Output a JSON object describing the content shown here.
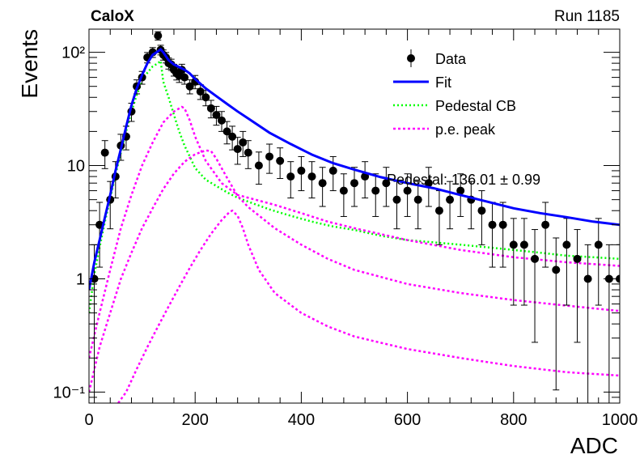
{
  "header": {
    "left_label": "CaloX",
    "right_label": "Run 1185"
  },
  "overlay_text": "Pedestal: 136.01 ± 0.99",
  "colors": {
    "data": "#000000",
    "fit": "#0000ff",
    "pedestal": "#00ff00",
    "pe": "#ff00ff"
  },
  "chart_data": {
    "type": "scatter",
    "xlabel": "ADC",
    "ylabel": "Events",
    "xlim": [
      0,
      1000
    ],
    "ylim": [
      0.08,
      160
    ],
    "yscale": "log",
    "x_ticks": [
      0,
      200,
      400,
      600,
      800,
      1000
    ],
    "y_ticks": [
      {
        "value": 0.1,
        "label": "10⁻¹"
      },
      {
        "value": 1,
        "label": "1"
      },
      {
        "value": 10,
        "label": "10"
      },
      {
        "value": 100,
        "label": "10²"
      }
    ],
    "legend_position": "top-right",
    "legend": [
      {
        "label": "Data",
        "style": "marker"
      },
      {
        "label": "Fit",
        "style": "line"
      },
      {
        "label": "Pedestal CB",
        "style": "dotted-green"
      },
      {
        "label": "p.e. peak",
        "style": "dotted-magenta"
      }
    ],
    "series": [
      {
        "name": "Data",
        "kind": "points",
        "x": [
          10,
          20,
          30,
          40,
          50,
          60,
          70,
          80,
          90,
          100,
          110,
          120,
          130,
          135,
          140,
          145,
          150,
          155,
          160,
          165,
          170,
          175,
          180,
          190,
          200,
          210,
          220,
          230,
          240,
          250,
          260,
          270,
          280,
          290,
          300,
          320,
          340,
          360,
          380,
          400,
          420,
          440,
          460,
          480,
          500,
          520,
          540,
          560,
          580,
          600,
          620,
          640,
          660,
          680,
          700,
          720,
          740,
          760,
          780,
          800,
          820,
          840,
          860,
          880,
          900,
          920,
          940,
          960,
          980,
          1000
        ],
        "y": [
          1.0,
          3.0,
          13,
          5.0,
          8.0,
          15,
          18,
          30,
          50,
          60,
          90,
          100,
          140,
          105,
          95,
          90,
          80,
          78,
          70,
          65,
          62,
          70,
          60,
          50,
          55,
          45,
          40,
          32,
          28,
          25,
          20,
          18,
          14,
          16,
          13,
          10,
          12,
          11,
          8,
          9,
          8,
          7,
          9,
          6,
          7,
          8,
          6,
          7,
          5,
          6,
          5,
          7,
          4,
          5,
          6,
          5,
          4,
          3,
          3,
          2,
          2,
          1.5,
          3,
          1.2,
          2,
          1.5,
          1.0,
          2,
          1.0,
          1.0
        ]
      },
      {
        "name": "Fit",
        "kind": "line",
        "x": [
          0,
          10,
          20,
          30,
          40,
          50,
          60,
          70,
          80,
          90,
          100,
          110,
          120,
          130,
          135,
          140,
          150,
          160,
          170,
          180,
          190,
          200,
          220,
          240,
          260,
          280,
          300,
          340,
          380,
          420,
          460,
          500,
          550,
          600,
          650,
          700,
          750,
          800,
          850,
          900,
          950,
          1000
        ],
        "y": [
          0.8,
          1.4,
          2.2,
          3.5,
          5.5,
          9,
          14,
          22,
          34,
          48,
          63,
          80,
          95,
          102,
          106,
          100,
          85,
          78,
          74,
          70,
          65,
          58,
          48,
          41,
          35,
          30,
          26,
          19.5,
          15.5,
          12.5,
          10.5,
          9.2,
          7.9,
          7.0,
          6.3,
          5.5,
          4.8,
          4.2,
          3.8,
          3.5,
          3.2,
          3.0
        ]
      },
      {
        "name": "Pedestal CB",
        "kind": "line",
        "x": [
          0,
          10,
          20,
          30,
          40,
          50,
          60,
          70,
          80,
          90,
          100,
          110,
          120,
          130,
          135,
          140,
          150,
          160,
          170,
          180,
          190,
          200,
          220,
          240,
          260,
          280,
          300,
          340,
          380,
          420,
          460,
          500,
          550,
          600,
          650,
          700,
          750,
          800,
          850,
          900,
          950,
          1000
        ],
        "y": [
          0.5,
          1.1,
          1.9,
          3.2,
          5.1,
          8.3,
          13,
          20,
          30,
          42,
          55,
          66,
          75,
          80,
          84,
          55,
          40,
          28,
          20,
          15,
          12,
          9.5,
          7.5,
          6.6,
          5.8,
          5.2,
          4.8,
          4.1,
          3.6,
          3.2,
          2.9,
          2.7,
          2.4,
          2.2,
          2.1,
          2.0,
          1.9,
          1.8,
          1.7,
          1.6,
          1.55,
          1.5
        ]
      },
      {
        "name": "p.e. peak",
        "kind": "line",
        "x": [
          0,
          20,
          40,
          60,
          80,
          100,
          120,
          140,
          160,
          175,
          180,
          190,
          200,
          220,
          250,
          280,
          300,
          350,
          400,
          450,
          500,
          600,
          700,
          800,
          900,
          1000
        ],
        "y": [
          0.2,
          0.5,
          1.2,
          2.8,
          5.5,
          10,
          16,
          24,
          30,
          33,
          32,
          25,
          18,
          11,
          7,
          5.5,
          5.2,
          4.5,
          3.8,
          3.2,
          2.8,
          2.2,
          1.8,
          1.55,
          1.4,
          1.3
        ]
      },
      {
        "name": "p.e. peak",
        "kind": "line",
        "x": [
          0,
          20,
          40,
          60,
          80,
          100,
          120,
          140,
          160,
          180,
          200,
          220,
          230,
          240,
          260,
          280,
          300,
          350,
          400,
          450,
          500,
          600,
          700,
          800,
          900,
          1000
        ],
        "y": [
          0.1,
          0.25,
          0.5,
          1.0,
          1.7,
          2.8,
          4.2,
          6.2,
          8.5,
          10.8,
          12.6,
          13.6,
          13.4,
          11.5,
          7.8,
          5.4,
          4.3,
          2.8,
          2.0,
          1.5,
          1.2,
          0.9,
          0.75,
          0.65,
          0.58,
          0.52
        ]
      },
      {
        "name": "p.e. peak",
        "kind": "line",
        "x": [
          55,
          70,
          90,
          110,
          130,
          150,
          170,
          190,
          210,
          230,
          250,
          265,
          270,
          280,
          290,
          300,
          320,
          350,
          400,
          450,
          500,
          600,
          700,
          800,
          900,
          1000
        ],
        "y": [
          0.08,
          0.1,
          0.16,
          0.25,
          0.38,
          0.57,
          0.85,
          1.25,
          1.8,
          2.5,
          3.3,
          3.9,
          4.0,
          3.6,
          2.8,
          2.0,
          1.2,
          0.75,
          0.5,
          0.38,
          0.31,
          0.24,
          0.2,
          0.17,
          0.15,
          0.14
        ]
      }
    ]
  }
}
